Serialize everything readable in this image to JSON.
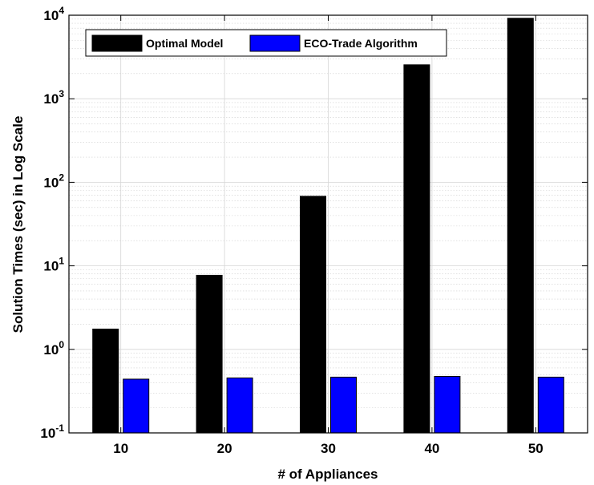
{
  "chart_data": {
    "type": "bar",
    "xlabel": "# of Appliances",
    "ylabel": "Solution Times (sec) in Log Scale",
    "yscale": "log",
    "ylim": [
      0.1,
      10000
    ],
    "yticks": [
      {
        "value": 0.1,
        "base": "10",
        "exp": "-1"
      },
      {
        "value": 1,
        "base": "10",
        "exp": "0"
      },
      {
        "value": 10,
        "base": "10",
        "exp": "1"
      },
      {
        "value": 100,
        "base": "10",
        "exp": "2"
      },
      {
        "value": 1000,
        "base": "10",
        "exp": "3"
      },
      {
        "value": 10000,
        "base": "10",
        "exp": "4"
      }
    ],
    "categories": [
      "10",
      "20",
      "30",
      "40",
      "50"
    ],
    "series": [
      {
        "name": "Optimal Model",
        "color": "#000000",
        "values": [
          1.75,
          7.7,
          68,
          2550,
          9200
        ]
      },
      {
        "name": "ECO-Trade Algorithm",
        "color": "#0000ff",
        "values": [
          0.44,
          0.455,
          0.465,
          0.475,
          0.465
        ]
      }
    ],
    "grid": true,
    "legend_position": "top-left"
  }
}
